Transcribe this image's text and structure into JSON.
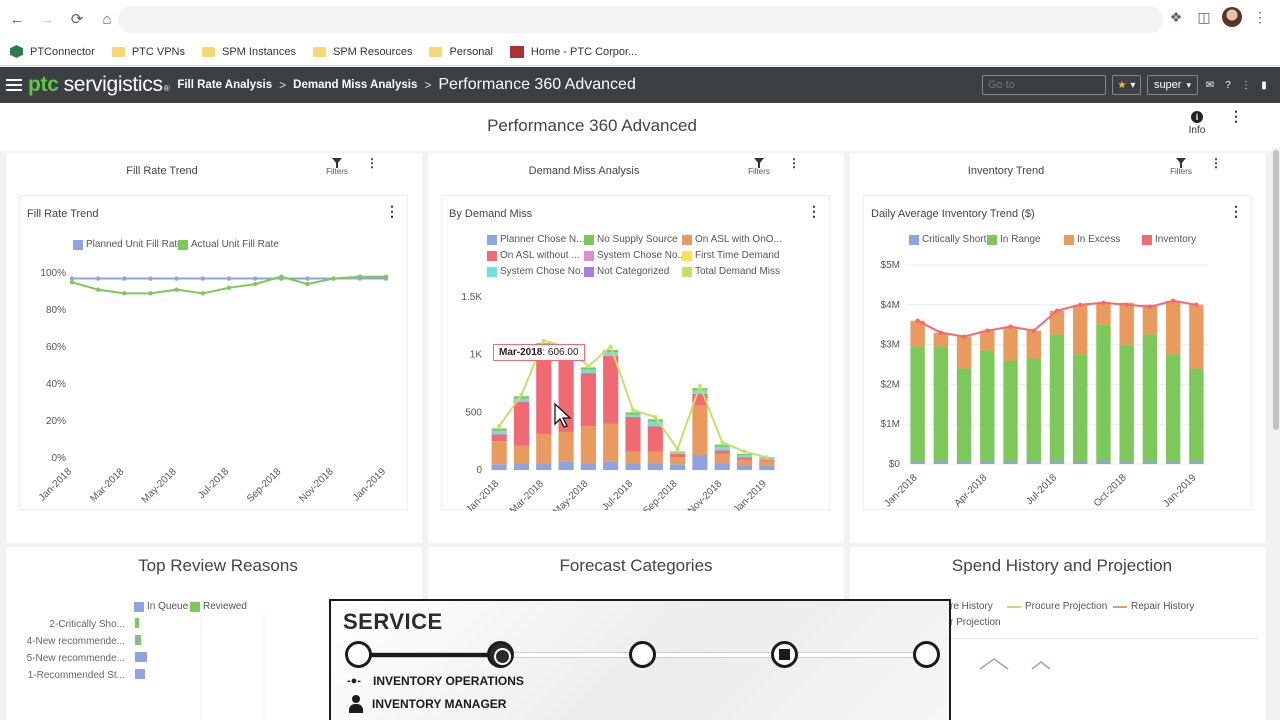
{
  "browser": {
    "bookmarks": [
      {
        "label": "PTConnector",
        "icon": "ptc"
      },
      {
        "label": "PTC VPNs",
        "icon": "folder"
      },
      {
        "label": "SPM Instances",
        "icon": "folder"
      },
      {
        "label": "SPM Resources",
        "icon": "folder"
      },
      {
        "label": "Personal",
        "icon": "folder"
      },
      {
        "label": "Home - PTC Corpor...",
        "icon": "cwt"
      }
    ]
  },
  "header": {
    "logo_ptc": "ptc",
    "logo_product": "servigistics",
    "breadcrumb": [
      "Fill Rate Analysis",
      "Demand Miss Analysis"
    ],
    "current": "Performance 360 Advanced",
    "goto_placeholder": "Go to",
    "user": "super"
  },
  "page": {
    "title": "Performance 360 Advanced",
    "info_label": "Info",
    "filters_label": "Filters"
  },
  "portlets": {
    "fill_rate": {
      "title": "Fill Rate Trend",
      "card_title": "Fill Rate Trend",
      "legend": [
        {
          "name": "Planned Unit Fill Rate",
          "color": "#8fa3e0"
        },
        {
          "name": "Actual Unit Fill Rate",
          "color": "#7ec75a"
        }
      ]
    },
    "demand_miss": {
      "title": "Demand Miss Analysis",
      "card_title": "By Demand Miss",
      "legend": [
        {
          "name": "Planner Chose N...",
          "color": "#8fa3e0"
        },
        {
          "name": "No Supply Source",
          "color": "#7ec75a"
        },
        {
          "name": "On ASL with OnO...",
          "color": "#e99a5f"
        },
        {
          "name": "On ASL without ...",
          "color": "#ef6a72"
        },
        {
          "name": "System Chose No...",
          "color": "#e38bd0"
        },
        {
          "name": "First Time Demand",
          "color": "#f7e05a"
        },
        {
          "name": "System Chose No...",
          "color": "#6ee0e4"
        },
        {
          "name": "Not Categorized",
          "color": "#a57fd9"
        },
        {
          "name": "Total Demand Miss",
          "color": "#c6df6b"
        }
      ],
      "tooltip_label": "Mar-2018",
      "tooltip_value": ": 606.00"
    },
    "inventory": {
      "title": "Inventory Trend",
      "card_title": "Daily Average Inventory Trend ($)",
      "legend": [
        {
          "name": "Critically Short",
          "color": "#8fa3e0"
        },
        {
          "name": "In Range",
          "color": "#7ec75a"
        },
        {
          "name": "In Excess",
          "color": "#e99a5f"
        },
        {
          "name": "Inventory",
          "color": "#ef6a72"
        }
      ]
    },
    "top_review": {
      "title": "Top Review Reasons",
      "legend": [
        {
          "name": "In Queue",
          "color": "#8fa3e0"
        },
        {
          "name": "Reviewed",
          "color": "#7ec75a"
        }
      ],
      "rows": [
        {
          "label": "2-Critically Sho...",
          "in_queue": 0,
          "reviewed": 2
        },
        {
          "label": "4-New recommende...",
          "in_queue": 1,
          "reviewed": 2
        },
        {
          "label": "5-New recommende...",
          "in_queue": 6,
          "reviewed": 0
        },
        {
          "label": "1-Recommended St...",
          "in_queue": 5,
          "reviewed": 0
        }
      ]
    },
    "forecast": {
      "title": "Forecast Categories"
    },
    "spend": {
      "title": "Spend History and Projection",
      "legend": [
        "re History",
        "Procure Projection",
        "Repair History",
        "r Projection"
      ],
      "legend_colors": [
        "#8fa3e0",
        "#c6df6b",
        "#e99a5f",
        "#8fa3e0"
      ]
    }
  },
  "chart_data": [
    {
      "type": "line",
      "title": "Fill Rate Trend",
      "x": [
        "Jan-2018",
        "Feb-2018",
        "Mar-2018",
        "Apr-2018",
        "May-2018",
        "Jun-2018",
        "Jul-2018",
        "Aug-2018",
        "Sep-2018",
        "Oct-2018",
        "Nov-2018",
        "Dec-2018",
        "Jan-2019"
      ],
      "x_tick_labels": [
        "Jan-2018",
        "Mar-2018",
        "May-2018",
        "Jul-2018",
        "Sep-2018",
        "Nov-2018",
        "Jan-2019"
      ],
      "y_tick_labels": [
        "0%",
        "20%",
        "40%",
        "60%",
        "80%",
        "100%"
      ],
      "ylim": [
        0,
        100
      ],
      "series": [
        {
          "name": "Planned Unit Fill Rate",
          "color": "#8fa3e0",
          "values": [
            97,
            97,
            97,
            97,
            97,
            97,
            97,
            97,
            97,
            97,
            97,
            97,
            97
          ]
        },
        {
          "name": "Actual Unit Fill Rate",
          "color": "#7ec75a",
          "values": [
            95,
            91,
            89,
            89,
            91,
            89,
            92,
            94,
            98,
            94,
            97,
            98,
            98
          ]
        }
      ]
    },
    {
      "type": "bar",
      "title": "By Demand Miss",
      "x": [
        "Jan-2018",
        "Feb-2018",
        "Mar-2018",
        "Apr-2018",
        "May-2018",
        "Jun-2018",
        "Jul-2018",
        "Aug-2018",
        "Sep-2018",
        "Oct-2018",
        "Nov-2018",
        "Dec-2018",
        "Jan-2019"
      ],
      "x_tick_labels": [
        "Jan-2018",
        "Mar-2018",
        "May-2018",
        "Jul-2018",
        "Sep-2018",
        "Nov-2018",
        "Jan-2019"
      ],
      "y_tick_labels": [
        "0",
        "500",
        "1K",
        "1.5K"
      ],
      "ylim": [
        0,
        1500
      ],
      "stacked": true,
      "series": [
        {
          "name": "Planner Chose N...",
          "color": "#8fa3e0",
          "values": [
            50,
            60,
            60,
            70,
            60,
            70,
            60,
            60,
            50,
            130,
            60,
            40,
            40
          ]
        },
        {
          "name": "On ASL with OnO...",
          "color": "#e99a5f",
          "values": [
            200,
            150,
            250,
            260,
            320,
            330,
            100,
            100,
            60,
            430,
            80,
            50,
            40
          ]
        },
        {
          "name": "On ASL without ...",
          "color": "#ef6a72",
          "values": [
            60,
            380,
            700,
            660,
            460,
            590,
            300,
            220,
            30,
            100,
            30,
            20,
            10
          ]
        },
        {
          "name": "System Chose No...",
          "color": "#6ee0e4",
          "values": [
            30,
            30,
            60,
            40,
            30,
            30,
            20,
            40,
            10,
            30,
            30,
            20,
            10
          ]
        },
        {
          "name": "No Supply Source",
          "color": "#7ec75a",
          "values": [
            20,
            20,
            30,
            20,
            20,
            20,
            20,
            20,
            10,
            20,
            20,
            10,
            10
          ]
        }
      ],
      "total": {
        "name": "Total Demand Miss",
        "color": "#c6df6b",
        "values": [
          380,
          650,
          1120,
          1070,
          900,
          1070,
          520,
          460,
          180,
          730,
          240,
          160,
          110
        ]
      }
    },
    {
      "type": "bar",
      "title": "Daily Average Inventory Trend ($)",
      "x": [
        "Jan-2018",
        "Feb-2018",
        "Mar-2018",
        "Apr-2018",
        "May-2018",
        "Jun-2018",
        "Jul-2018",
        "Aug-2018",
        "Sep-2018",
        "Oct-2018",
        "Nov-2018",
        "Dec-2018",
        "Jan-2019"
      ],
      "x_tick_labels": [
        "Jan-2018",
        "Apr-2018",
        "Jul-2018",
        "Oct-2018",
        "Jan-2019"
      ],
      "y_tick_labels": [
        "$0",
        "$1M",
        "$2M",
        "$3M",
        "$4M",
        "$5M"
      ],
      "ylim": [
        0,
        5
      ],
      "y_unit": "$M",
      "stacked": true,
      "series": [
        {
          "name": "Critically Short",
          "color": "#8fa3e0",
          "values": [
            0.05,
            0.05,
            0.05,
            0.05,
            0.05,
            0.05,
            0.05,
            0.05,
            0.05,
            0.05,
            0.05,
            0.05,
            0.05
          ]
        },
        {
          "name": "In Range",
          "color": "#7ec75a",
          "values": [
            2.9,
            2.9,
            2.35,
            2.8,
            2.55,
            2.6,
            3.2,
            2.7,
            3.45,
            2.95,
            3.2,
            2.7,
            2.35
          ]
        },
        {
          "name": "In Excess",
          "color": "#e99a5f",
          "values": [
            0.65,
            0.35,
            0.8,
            0.5,
            0.85,
            0.7,
            0.6,
            1.25,
            0.55,
            1.05,
            0.75,
            1.35,
            1.6
          ]
        }
      ],
      "line": {
        "name": "Inventory",
        "color": "#ef6a72",
        "values": [
          3.6,
          3.3,
          3.2,
          3.35,
          3.45,
          3.35,
          3.85,
          4.0,
          4.05,
          4.0,
          3.95,
          4.1,
          4.0
        ]
      }
    }
  ],
  "overlay": {
    "title": "SERVICE",
    "row1": "INVENTORY OPERATIONS",
    "row2": "INVENTORY MANAGER"
  }
}
